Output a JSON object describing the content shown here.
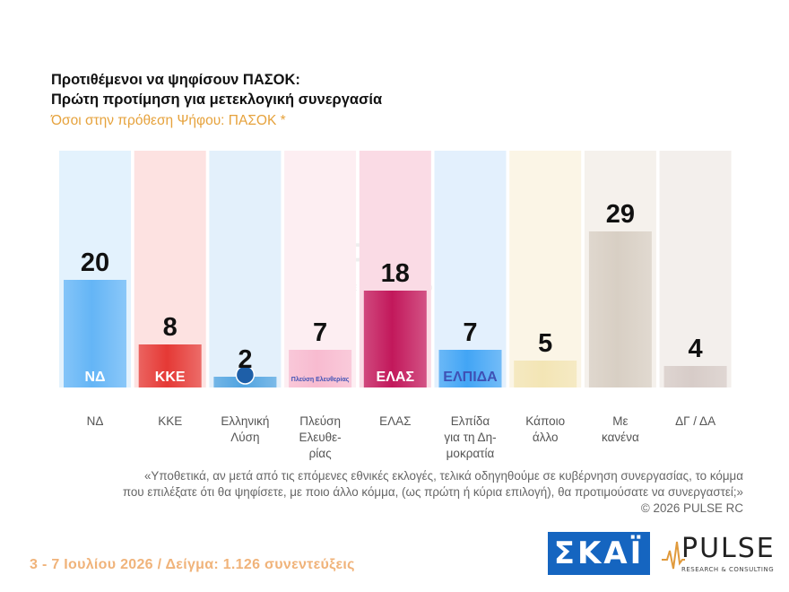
{
  "header": {
    "title_line1": "Προτιθέμενοι να ψηφίσουν ΠΑΣΟΚ:",
    "title_line2": "Πρώτη προτίμηση για μετεκλογική συνεργασία",
    "subtitle": "Όσοι στην πρόθεση Ψήφου: ΠΑΣΟΚ *"
  },
  "chart_data": {
    "type": "bar",
    "categories": [
      "ΝΔ",
      "ΚΚΕ",
      "Ελληνική Λύση",
      "Πλεύση Ελευθε-ρίας",
      "ΕΛΑΣ",
      "Ελπίδα για τη Δη-μοκρατία",
      "Κάποιο άλλο",
      "Με κανένα",
      "ΔΓ / ΔΑ"
    ],
    "category_lines": [
      [
        "ΝΔ"
      ],
      [
        "ΚΚΕ"
      ],
      [
        "Ελληνική",
        "Λύση"
      ],
      [
        "Πλεύση",
        "Ελευθε-",
        "ρίας"
      ],
      [
        "ΕΛΑΣ"
      ],
      [
        "Ελπίδα",
        "για τη Δη-",
        "μοκρατία"
      ],
      [
        "Κάποιο",
        "άλλο"
      ],
      [
        "Με",
        "κανένα"
      ],
      [
        "ΔΓ / ΔΑ"
      ]
    ],
    "values": [
      20,
      8,
      2,
      7,
      18,
      7,
      5,
      29,
      4
    ],
    "value_labels": [
      "20",
      "8",
      "2",
      "7",
      "18",
      "7",
      "5",
      "29",
      "4"
    ],
    "ylim": [
      0,
      44
    ],
    "bar_colors": [
      "#64b5f6",
      "#e53935",
      "#4fa3e0",
      "#f8bbd0",
      "#c2185b",
      "#42a5f5",
      "#f3e5b5",
      "#d8cfc4",
      "#d7ccc8"
    ],
    "column_bg_colors": [
      "#e3f2fd",
      "#fde2e1",
      "#e3f0fb",
      "#fdeef2",
      "#fadbe5",
      "#e3f0fd",
      "#fbf5e6",
      "#f5f1ec",
      "#f3efec"
    ],
    "logo_texts": [
      "ΝΔ",
      "ΚΚΕ",
      "",
      "Πλεύση Ελευθερίας",
      "ΕΛΑΣ",
      "ΕΛΠΙΔΑ",
      "",
      "",
      ""
    ]
  },
  "footer": {
    "question_line1": "«Υποθετικά, αν μετά από τις επόμενες εθνικές εκλογές, τελικά οδηγηθούμε σε κυβέρνηση συνεργασίας, το κόμμα",
    "question_line2": "που επιλέξατε ότι θα ψηφίσετε, με ποιο άλλο κόμμα, (ως πρώτη ή κύρια επιλογή), θα προτιμούσατε να συνεργαστεί;»",
    "copyright": "©  2026  PULSE RC",
    "date_sample": "3 - 7  Ιουλίου 2026  /  Δείγμα:  1.126 συνεντεύξεις"
  },
  "logos": {
    "skai": "ΣΚΑΪ",
    "pulse": "PULSE",
    "pulse_sub": "RESEARCH & CONSULTING"
  }
}
